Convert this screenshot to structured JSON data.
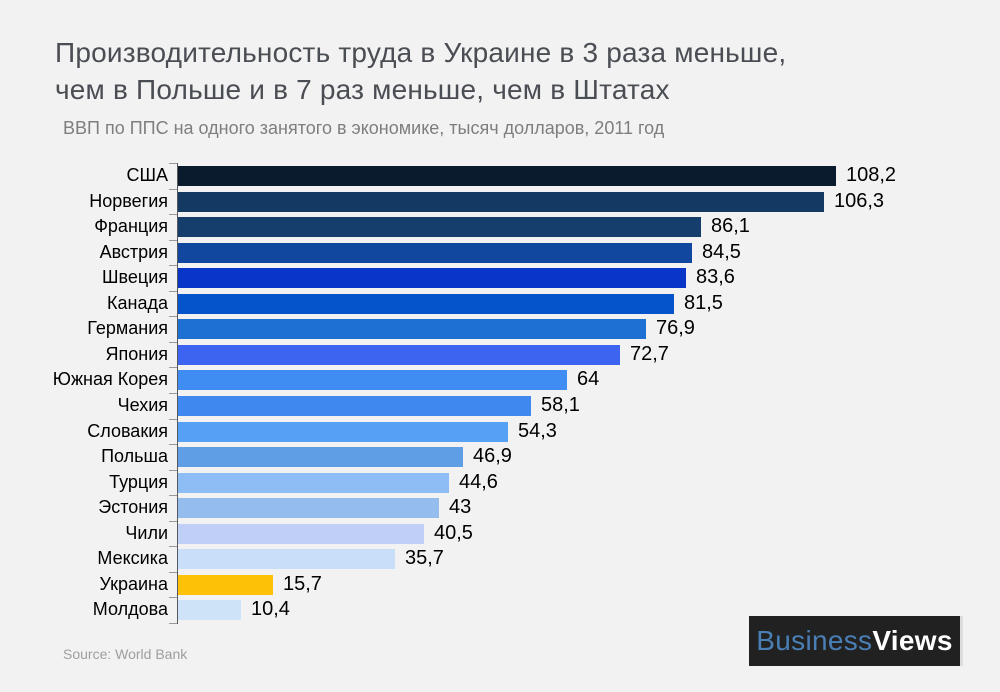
{
  "title": {
    "line1": "Производительность труда в Украине в 3 раза меньше,",
    "line2": "чем в Польше и в 7 раз меньше, чем в Штатах"
  },
  "subtitle": "ВВП по ППС на одного занятого в экономике, тысяч долларов, 2011 год",
  "source": "Source: World Bank",
  "logo": {
    "part1": "Business",
    "part2": "Views"
  },
  "colors": {
    "background": "#f1f2f1",
    "title_text": "#4b4d54",
    "subtitle_text": "#7e7e7e",
    "source_text": "#9e9e9e",
    "axis": "#55585c",
    "tick": "#9a9a9a",
    "value_text": "#000000",
    "highlight": "#fdc107",
    "logo_background": "#212121",
    "logo_blue": "#4a7fb5",
    "logo_white": "#ffffff"
  },
  "chart_data": {
    "type": "bar",
    "orientation": "horizontal",
    "title": "ВВП по ППС на одного занятого в экономике, тысяч долларов, 2011 год",
    "xlabel": "",
    "ylabel": "",
    "xlim": [
      0,
      115
    ],
    "grid": false,
    "legend": false,
    "highlight_category": "Украина",
    "categories": [
      "США",
      "Норвегия",
      "Франция",
      "Австрия",
      "Швеция",
      "Канада",
      "Германия",
      "Япония",
      "Южная Корея",
      "Чехия",
      "Словакия",
      "Польша",
      "Турция",
      "Эстония",
      "Чили",
      "Мексика",
      "Украина",
      "Молдова"
    ],
    "values": [
      108.2,
      106.3,
      86.1,
      84.5,
      83.6,
      81.5,
      76.9,
      72.7,
      64,
      58.1,
      54.3,
      46.9,
      44.6,
      43,
      40.5,
      35.7,
      15.7,
      10.4
    ],
    "value_labels": [
      "108,2",
      "106,3",
      "86,1",
      "84,5",
      "83,6",
      "81,5",
      "76,9",
      "72,7",
      "64",
      "58,1",
      "54,3",
      "46,9",
      "44,6",
      "43",
      "40,5",
      "35,7",
      "15,7",
      "10,4"
    ],
    "bar_colors": [
      "#0b1b2e",
      "#143a63",
      "#153e6d",
      "#11479f",
      "#0a35c9",
      "#0554cb",
      "#1e70d2",
      "#3c64f0",
      "#3f8cf2",
      "#3e88ef",
      "#56a0f5",
      "#5f9de5",
      "#8dbdf4",
      "#94bdee",
      "#bfcff5",
      "#c9def8",
      "#fdc107",
      "#cfe3f8"
    ]
  }
}
